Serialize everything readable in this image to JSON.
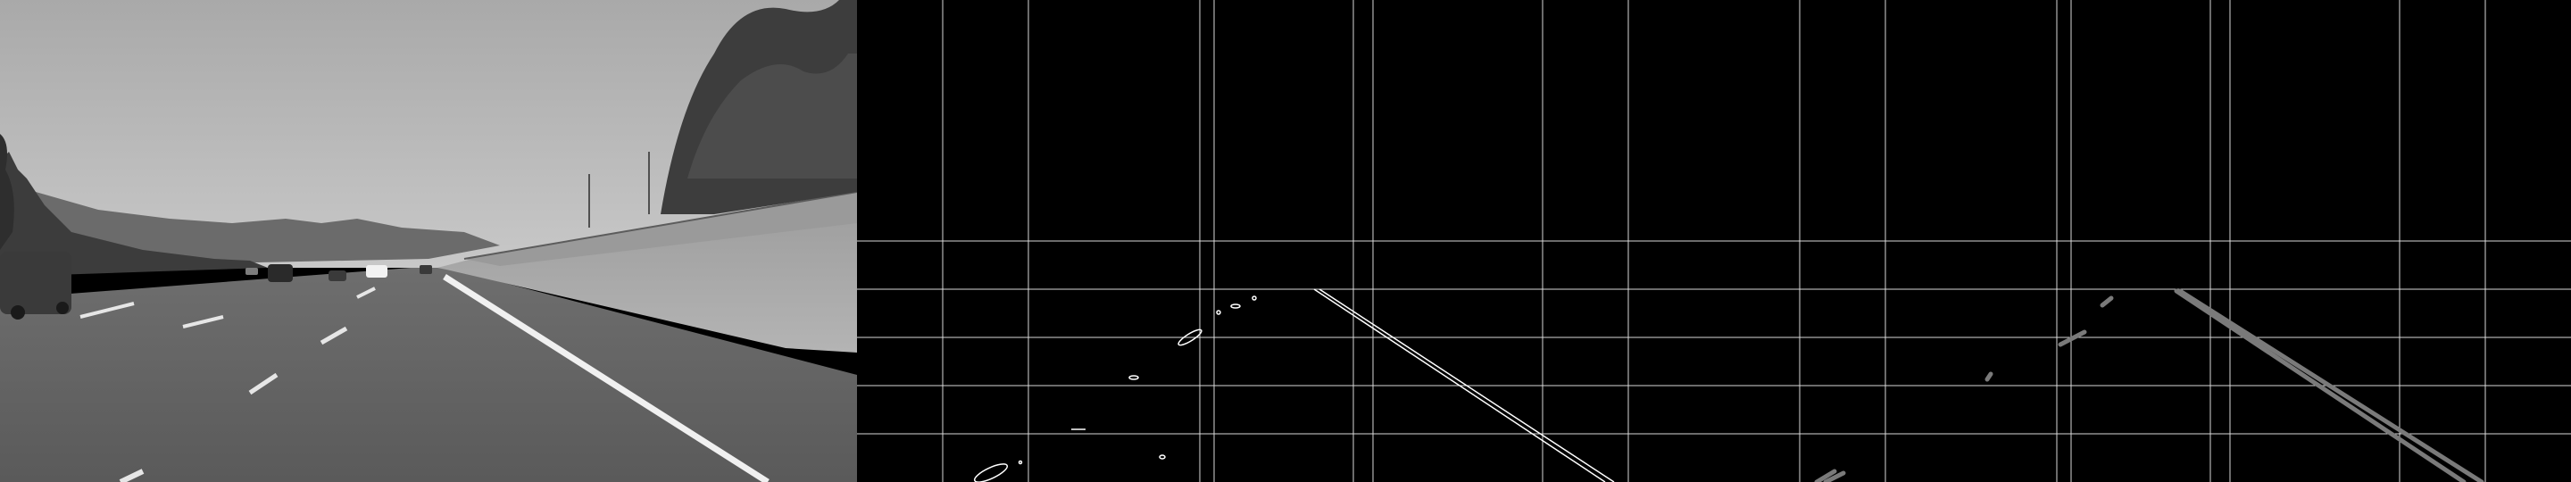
{
  "panels": [
    {
      "id": "grayscale-road",
      "kind": "grayscale-photo"
    },
    {
      "id": "canny-edges",
      "kind": "edge-map",
      "overlay": "grid"
    },
    {
      "id": "hough-lines",
      "kind": "line-segments",
      "overlay": "grid"
    }
  ],
  "colors": {
    "background": "#000000",
    "grid": "#ffffff",
    "edge": "#ffffff",
    "hough_segment": "#7a7a7a"
  }
}
